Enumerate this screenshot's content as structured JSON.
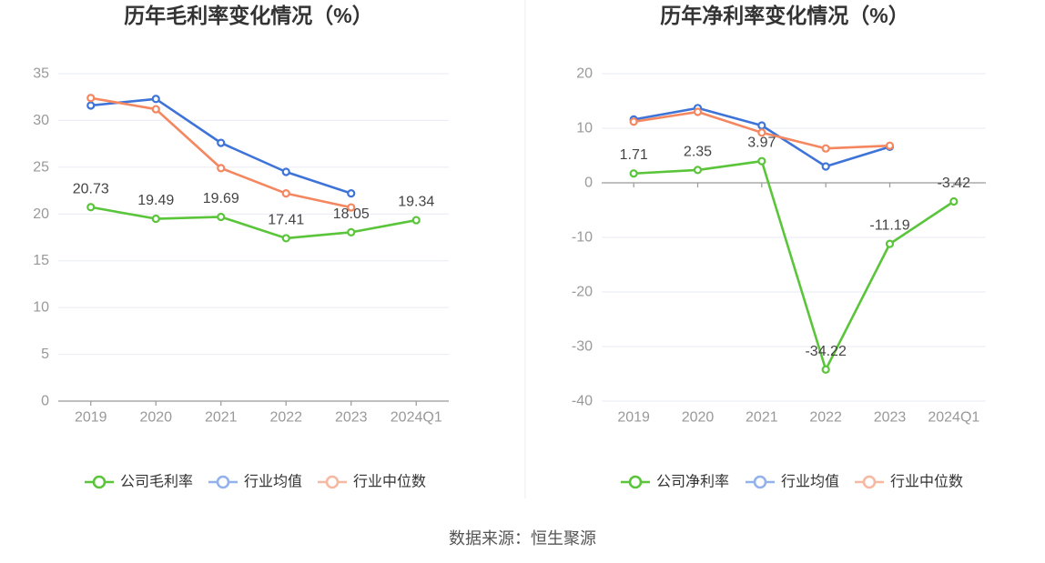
{
  "chart_data": [
    {
      "type": "line",
      "title": "历年毛利率变化情况（%）",
      "categories": [
        "2019",
        "2020",
        "2021",
        "2022",
        "2023",
        "2024Q1"
      ],
      "ylim": [
        0,
        35
      ],
      "yticks": [
        0,
        5,
        10,
        15,
        20,
        25,
        30,
        35
      ],
      "grid": true,
      "legend_position": "bottom",
      "series": [
        {
          "name": "公司毛利率",
          "values": [
            20.73,
            19.49,
            19.69,
            17.41,
            18.05,
            19.34
          ],
          "color": "#5ac53a",
          "legend_color": "#5ac53a",
          "show_labels": true
        },
        {
          "name": "行业均值",
          "values": [
            31.6,
            32.3,
            27.6,
            24.5,
            22.2,
            null
          ],
          "color": "#3e73d8",
          "legend_color": "#92b1ed",
          "show_labels": false
        },
        {
          "name": "行业中位数",
          "values": [
            32.4,
            31.2,
            24.9,
            22.2,
            20.7,
            null
          ],
          "color": "#f48660",
          "legend_color": "#f7b8a2",
          "show_labels": false
        }
      ]
    },
    {
      "type": "line",
      "title": "历年净利率变化情况（%）",
      "categories": [
        "2019",
        "2020",
        "2021",
        "2022",
        "2023",
        "2024Q1"
      ],
      "ylim": [
        -40,
        20
      ],
      "yticks": [
        -40,
        -30,
        -20,
        -10,
        0,
        10,
        20
      ],
      "grid": true,
      "legend_position": "bottom",
      "series": [
        {
          "name": "公司净利率",
          "values": [
            1.71,
            2.35,
            3.97,
            -34.22,
            -11.19,
            -3.42
          ],
          "color": "#5ac53a",
          "legend_color": "#5ac53a",
          "show_labels": true
        },
        {
          "name": "行业均值",
          "values": [
            11.6,
            13.7,
            10.5,
            3.0,
            6.6,
            null
          ],
          "color": "#3e73d8",
          "legend_color": "#92b1ed",
          "show_labels": false
        },
        {
          "name": "行业中位数",
          "values": [
            11.2,
            13.0,
            9.2,
            6.3,
            6.8,
            null
          ],
          "color": "#f48660",
          "legend_color": "#f7b8a2",
          "show_labels": false
        }
      ]
    }
  ],
  "footer": {
    "source": "数据来源：恒生聚源"
  }
}
